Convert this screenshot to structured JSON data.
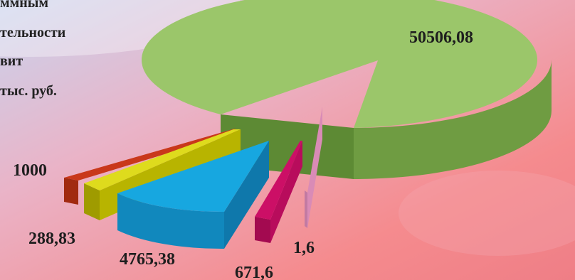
{
  "title_lines": [
    "ммным",
    "тельности",
    "вит",
    "тыс. руб."
  ],
  "chart_data": {
    "type": "pie",
    "title": "",
    "values": [
      50506.08,
      1000,
      288.83,
      4765.38,
      671.6,
      1.6
    ],
    "labels": [
      "50506,08",
      "1000",
      "288,83",
      "4765,38",
      "671,6",
      "1,6"
    ],
    "colors": [
      "#9bc66a",
      "#c9381b",
      "#c7c300",
      "#17a7e0",
      "#cc0f66",
      "#d98bb6"
    ],
    "style": "3d-exploded"
  }
}
